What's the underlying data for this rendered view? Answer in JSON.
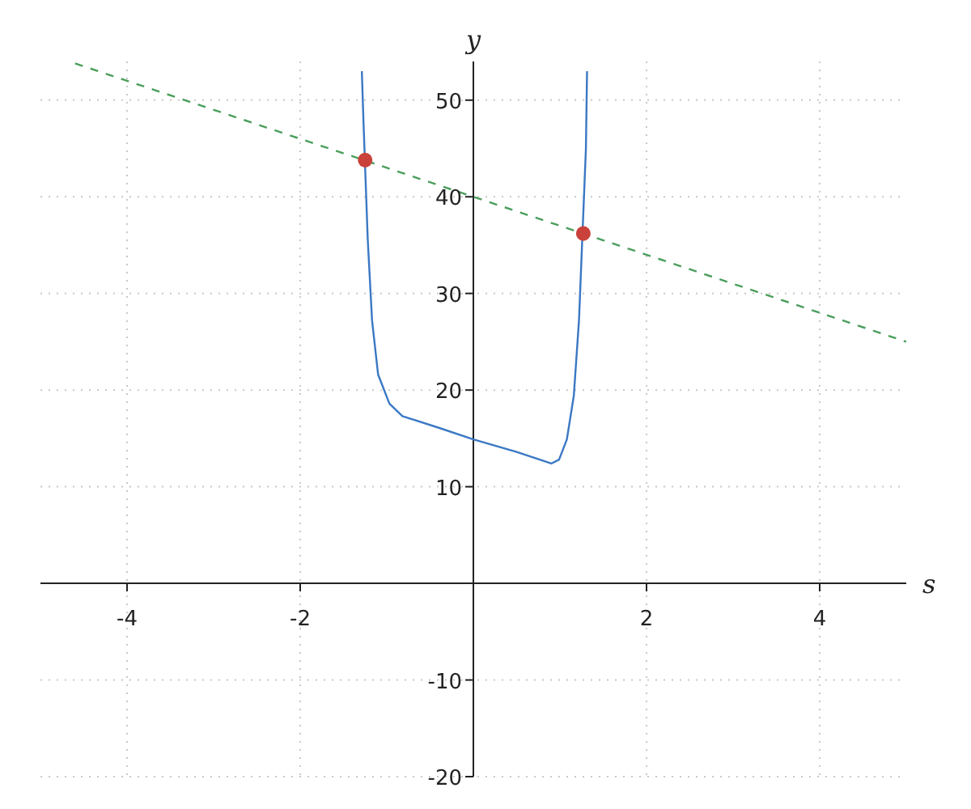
{
  "chart_data": {
    "type": "line",
    "xlabel": "s",
    "ylabel": "y",
    "xlim": [
      -5,
      5
    ],
    "ylim": [
      -20,
      54
    ],
    "xticks": [
      -4,
      -2,
      2,
      4
    ],
    "yticks": [
      -20,
      -10,
      10,
      20,
      30,
      40,
      50
    ],
    "grid": true,
    "marker": "none",
    "series": [
      {
        "x": [
          -1.288,
          -1.27,
          -1.22,
          -1.17,
          -1.1,
          -0.97,
          -0.82,
          -0.4,
          0,
          0.5,
          0.9,
          0.99,
          1.08,
          1.16,
          1.22,
          1.3,
          1.313
        ],
        "values": [
          53,
          48,
          35.6,
          27.2,
          21.6,
          18.6,
          17.3,
          16.1,
          14.9,
          13.6,
          12.4,
          12.8,
          14.9,
          19.4,
          27.2,
          45,
          53
        ],
        "color": "#3a78c4",
        "line_style": "solid"
      },
      {
        "x": [
          -4.6,
          5
        ],
        "values": [
          53.8,
          25
        ],
        "color": "#4a9e5c",
        "line_style": "dashed"
      },
      {
        "type": "scatter",
        "x": [
          -1.25,
          1.27
        ],
        "values": [
          43.8,
          36.2
        ],
        "color": "#c9413a",
        "marker": "circle"
      }
    ]
  }
}
